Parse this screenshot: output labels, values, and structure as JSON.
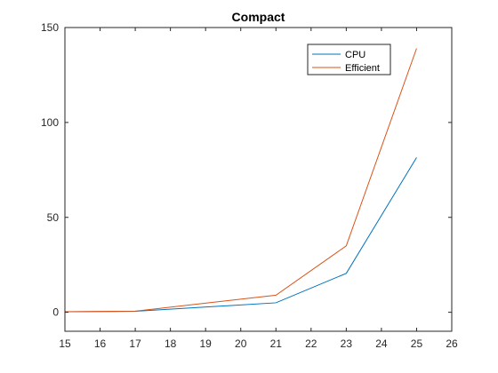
{
  "chart_data": {
    "type": "line",
    "title": "Compact",
    "xlabel": "",
    "ylabel": "",
    "xlim": [
      15,
      26
    ],
    "ylim": [
      -10,
      150
    ],
    "xticks": [
      15,
      16,
      17,
      18,
      19,
      20,
      21,
      22,
      23,
      24,
      25,
      26
    ],
    "yticks": [
      0,
      50,
      100,
      150
    ],
    "grid": false,
    "legend_position": "top-right",
    "series": [
      {
        "name": "CPU",
        "color": "#0072BD",
        "x": [
          15,
          17,
          21,
          23,
          25
        ],
        "y": [
          0.3,
          0.5,
          5.0,
          20.5,
          81.5
        ]
      },
      {
        "name": "Efficient",
        "color": "#D95319",
        "x": [
          15,
          17,
          21,
          23,
          25
        ],
        "y": [
          0.3,
          0.6,
          9.0,
          35.0,
          139.0
        ]
      }
    ]
  }
}
